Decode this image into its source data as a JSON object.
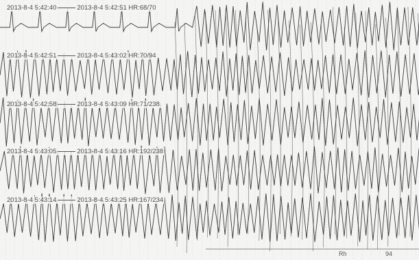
{
  "strips": [
    {
      "start": "2013-8-4 5:42:40",
      "end": "2013-8-4 5:42:51",
      "hr": "HR:68/70"
    },
    {
      "start": "2013-8-4 5:42:51",
      "end": "2013-8-4 5:43:02",
      "hr": "HR:70/94"
    },
    {
      "start": "2013-8-4 5:42:58",
      "end": "2013-8-4 5:43:09",
      "hr": "HR:71/238"
    },
    {
      "start": "2013-8-4 5:43:05",
      "end": "2013-8-4 5:43:16",
      "hr": "HR:192/238"
    },
    {
      "start": "2013-8-4 5:43:14",
      "end": "2013-8-4 5:43:25",
      "hr": "HR:167/234"
    }
  ],
  "footer": {
    "left": "Rh",
    "right": "94"
  },
  "colors": {
    "trace": "#3a3a3a",
    "grid": "#c8c8c8",
    "paper": "#f4f4f2"
  }
}
